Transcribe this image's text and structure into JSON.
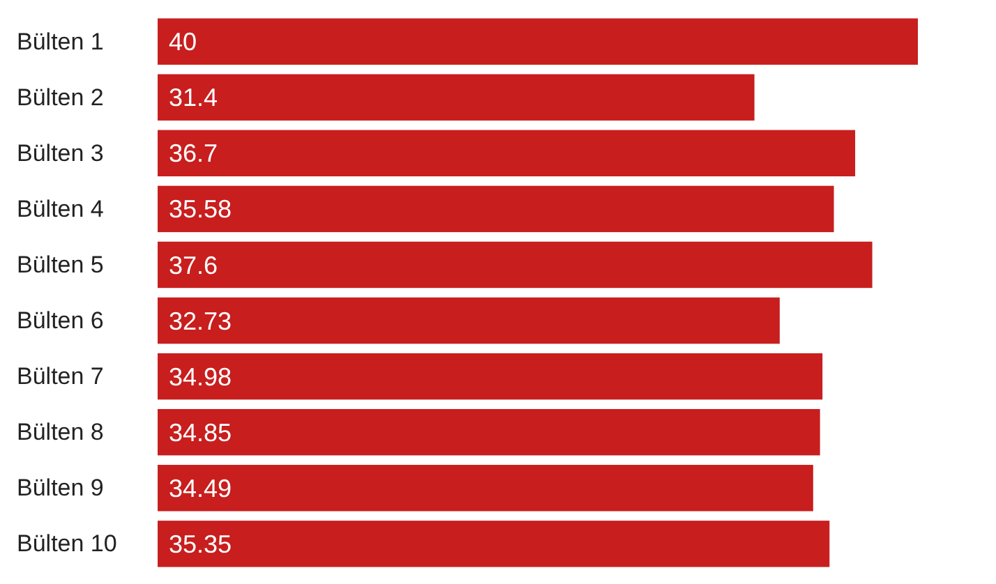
{
  "chart_data": {
    "type": "bar",
    "orientation": "horizontal",
    "categories": [
      "Bülten 1",
      "Bülten 2",
      "Bülten 3",
      "Bülten 4",
      "Bülten 5",
      "Bülten 6",
      "Bülten 7",
      "Bülten 8",
      "Bülten 9",
      "Bülten 10"
    ],
    "values": [
      40,
      31.4,
      36.7,
      35.58,
      37.6,
      32.73,
      34.98,
      34.85,
      34.49,
      35.35
    ],
    "color": "#c81e1e",
    "data_labels": true
  }
}
